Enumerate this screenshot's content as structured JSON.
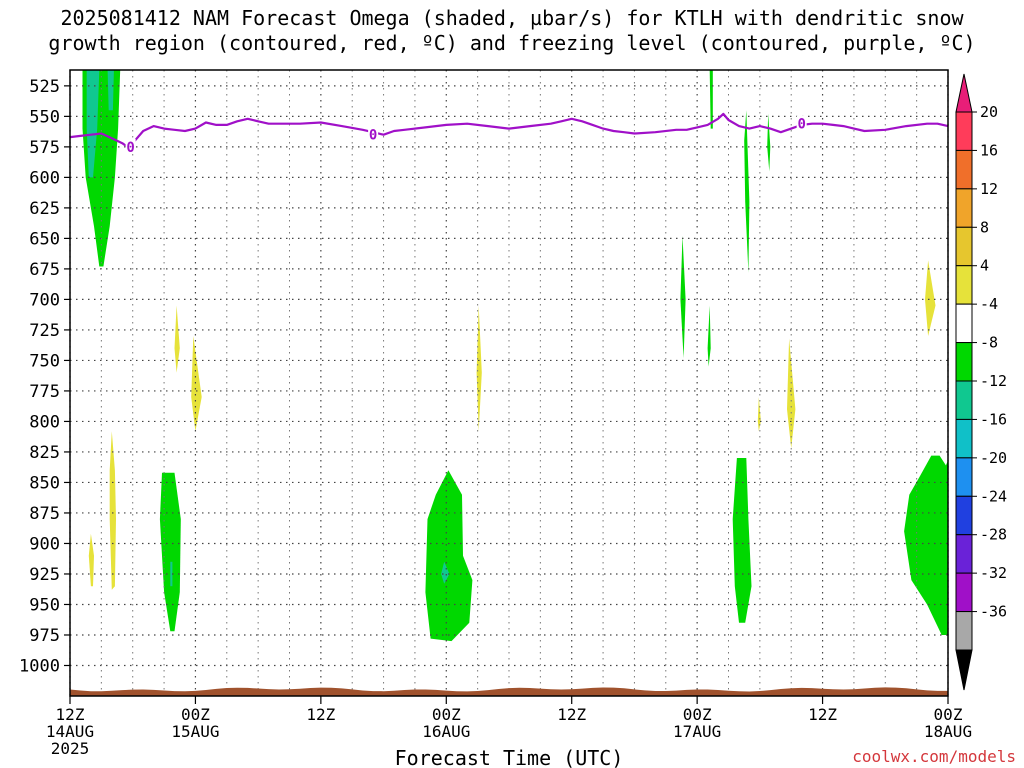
{
  "title_line1": "2025081412 NAM Forecast Omega (shaded, µbar/s) for KTLH with dendritic snow",
  "title_line2": "growth region (contoured, red, ºC) and freezing level (contoured, purple, ºC)",
  "credit": "coolwx.com/models",
  "chart_data": {
    "type": "heatmap",
    "title": "2025081412 NAM Forecast Omega (shaded, µbar/s) for KTLH with dendritic snow growth region (contoured, red, ºC) and freezing level (contoured, purple, ºC)",
    "xlabel": "Forecast Time (UTC)",
    "ylabel": "",
    "ylim": [
      1025,
      512
    ],
    "xlim": [
      0,
      84
    ],
    "yticks": [
      "525",
      "550",
      "575",
      "600",
      "625",
      "650",
      "675",
      "700",
      "725",
      "750",
      "775",
      "800",
      "825",
      "850",
      "875",
      "900",
      "925",
      "950",
      "975",
      "1000"
    ],
    "xticks": [
      {
        "hour": 0,
        "label": "12Z",
        "sub": "14AUG",
        "year": "2025"
      },
      {
        "hour": 12,
        "label": "00Z",
        "sub": "15AUG"
      },
      {
        "hour": 24,
        "label": "12Z"
      },
      {
        "hour": 36,
        "label": "00Z",
        "sub": "16AUG"
      },
      {
        "hour": 48,
        "label": "12Z"
      },
      {
        "hour": 60,
        "label": "00Z",
        "sub": "17AUG"
      },
      {
        "hour": 72,
        "label": "12Z"
      },
      {
        "hour": 84,
        "label": "00Z",
        "sub": "18AUG"
      }
    ],
    "colorbar": {
      "labels": [
        "20",
        "16",
        "12",
        "8",
        "4",
        "-4",
        "-8",
        "-12",
        "-16",
        "-20",
        "-24",
        "-28",
        "-32",
        "-36"
      ],
      "colors": [
        "#ff3c5a",
        "#f06f2a",
        "#f0a42a",
        "#e6c62e",
        "#e6e23a",
        "#ffffff",
        "#00d800",
        "#10c890",
        "#10c0c8",
        "#1e90f0",
        "#2040e0",
        "#6a22d8",
        "#a010c8",
        "#a8a8a8"
      ],
      "top_arrow": "#e81e78",
      "bottom_arrow": "#000000"
    },
    "freezing_level": {
      "label": "0",
      "color": "#a010c8",
      "points": [
        [
          0,
          567
        ],
        [
          1,
          566
        ],
        [
          2,
          565
        ],
        [
          3,
          564
        ],
        [
          4,
          568
        ],
        [
          5,
          572
        ],
        [
          5.5,
          575
        ],
        [
          6,
          572
        ],
        [
          7,
          562
        ],
        [
          8,
          558
        ],
        [
          9,
          560
        ],
        [
          10,
          561
        ],
        [
          11,
          562
        ],
        [
          12,
          560
        ],
        [
          13,
          555
        ],
        [
          14,
          557
        ],
        [
          15,
          557
        ],
        [
          16,
          554
        ],
        [
          17,
          552
        ],
        [
          18,
          554
        ],
        [
          19,
          556
        ],
        [
          20,
          556
        ],
        [
          22,
          556
        ],
        [
          24,
          555
        ],
        [
          26,
          558
        ],
        [
          28,
          561
        ],
        [
          29,
          563
        ],
        [
          30,
          565
        ],
        [
          31,
          562
        ],
        [
          32,
          561
        ],
        [
          34,
          559
        ],
        [
          36,
          557
        ],
        [
          38,
          556
        ],
        [
          40,
          558
        ],
        [
          42,
          560
        ],
        [
          44,
          558
        ],
        [
          46,
          556
        ],
        [
          47,
          554
        ],
        [
          48,
          552
        ],
        [
          49,
          554
        ],
        [
          50,
          557
        ],
        [
          51,
          560
        ],
        [
          52,
          562
        ],
        [
          53,
          563
        ],
        [
          54,
          564
        ],
        [
          56,
          563
        ],
        [
          58,
          561
        ],
        [
          59,
          561
        ],
        [
          60,
          559
        ],
        [
          61,
          557
        ],
        [
          62,
          552
        ],
        [
          62.5,
          548
        ],
        [
          63,
          553
        ],
        [
          64,
          558
        ],
        [
          65,
          560
        ],
        [
          66,
          558
        ],
        [
          67,
          560
        ],
        [
          68,
          563
        ],
        [
          69,
          560
        ],
        [
          70,
          557
        ],
        [
          71,
          556
        ],
        [
          72,
          556
        ],
        [
          73,
          557
        ],
        [
          74,
          558
        ],
        [
          75,
          560
        ],
        [
          76,
          562
        ],
        [
          78,
          561
        ],
        [
          80,
          558
        ],
        [
          82,
          556
        ],
        [
          83,
          556
        ],
        [
          84,
          558
        ]
      ]
    },
    "omega_regions": [
      {
        "value": -8,
        "points": [
          [
            1.2,
            512
          ],
          [
            4.8,
            512
          ],
          [
            4.6,
            560
          ],
          [
            4.3,
            600
          ],
          [
            3.8,
            640
          ],
          [
            3.2,
            673
          ],
          [
            2.8,
            673
          ],
          [
            2.3,
            640
          ],
          [
            1.5,
            600
          ],
          [
            1.2,
            560
          ]
        ]
      },
      {
        "value": -12,
        "points": [
          [
            1.6,
            512
          ],
          [
            2.8,
            512
          ],
          [
            2.6,
            560
          ],
          [
            2.2,
            600
          ],
          [
            1.8,
            600
          ],
          [
            1.6,
            560
          ]
        ]
      },
      {
        "value": -12,
        "points": [
          [
            3.6,
            512
          ],
          [
            4.2,
            512
          ],
          [
            4.1,
            545
          ],
          [
            3.7,
            545
          ]
        ]
      },
      {
        "value": 4,
        "points": [
          [
            4.0,
            808
          ],
          [
            4.3,
            840
          ],
          [
            4.4,
            880
          ],
          [
            4.3,
            935
          ],
          [
            4.0,
            938
          ],
          [
            3.8,
            880
          ],
          [
            3.8,
            840
          ]
        ]
      },
      {
        "value": 4,
        "points": [
          [
            2.0,
            892
          ],
          [
            2.3,
            910
          ],
          [
            2.2,
            935
          ],
          [
            2.0,
            935
          ],
          [
            1.8,
            910
          ]
        ]
      },
      {
        "value": -8,
        "points": [
          [
            8.8,
            842
          ],
          [
            10.0,
            842
          ],
          [
            10.6,
            880
          ],
          [
            10.5,
            940
          ],
          [
            10.0,
            972
          ],
          [
            9.6,
            972
          ],
          [
            9.0,
            940
          ],
          [
            8.6,
            880
          ]
        ]
      },
      {
        "value": -12,
        "points": [
          [
            9.6,
            915
          ],
          [
            9.8,
            915
          ],
          [
            9.8,
            935
          ],
          [
            9.6,
            935
          ]
        ]
      },
      {
        "value": 4,
        "points": [
          [
            10.2,
            705
          ],
          [
            10.5,
            740
          ],
          [
            10.2,
            760
          ],
          [
            10.0,
            740
          ]
        ]
      },
      {
        "value": 4,
        "points": [
          [
            11.8,
            730
          ],
          [
            12.6,
            780
          ],
          [
            12.0,
            808
          ],
          [
            11.6,
            780
          ]
        ]
      },
      {
        "value": -8,
        "points": [
          [
            36.2,
            840
          ],
          [
            37.5,
            860
          ],
          [
            37.6,
            910
          ],
          [
            38.5,
            930
          ],
          [
            38.2,
            965
          ],
          [
            36.5,
            980
          ],
          [
            34.5,
            978
          ],
          [
            34.0,
            940
          ],
          [
            34.2,
            880
          ],
          [
            35.0,
            860
          ]
        ]
      },
      {
        "value": -12,
        "points": [
          [
            35.8,
            915
          ],
          [
            36.3,
            925
          ],
          [
            35.8,
            933
          ],
          [
            35.5,
            925
          ]
        ]
      },
      {
        "value": 4,
        "points": [
          [
            39.1,
            705
          ],
          [
            39.4,
            760
          ],
          [
            39.1,
            808
          ],
          [
            38.9,
            760
          ]
        ]
      },
      {
        "value": -8,
        "points": [
          [
            61.2,
            512
          ],
          [
            61.5,
            512
          ],
          [
            61.5,
            560
          ],
          [
            61.3,
            560
          ]
        ]
      },
      {
        "value": -8,
        "points": [
          [
            58.6,
            648
          ],
          [
            58.9,
            700
          ],
          [
            58.7,
            748
          ],
          [
            58.4,
            700
          ]
        ]
      },
      {
        "value": -8,
        "points": [
          [
            61.2,
            705
          ],
          [
            61.3,
            740
          ],
          [
            61.1,
            755
          ],
          [
            61.0,
            740
          ]
        ]
      },
      {
        "value": -8,
        "points": [
          [
            63.8,
            830
          ],
          [
            64.7,
            830
          ],
          [
            64.9,
            880
          ],
          [
            65.2,
            935
          ],
          [
            64.6,
            965
          ],
          [
            64.0,
            965
          ],
          [
            63.6,
            935
          ],
          [
            63.4,
            880
          ]
        ]
      },
      {
        "value": -8,
        "points": [
          [
            64.7,
            545
          ],
          [
            65.0,
            620
          ],
          [
            64.9,
            678
          ],
          [
            64.6,
            620
          ],
          [
            64.5,
            570
          ]
        ]
      },
      {
        "value": -8,
        "points": [
          [
            66.8,
            548
          ],
          [
            67.0,
            575
          ],
          [
            66.9,
            595
          ],
          [
            66.7,
            575
          ]
        ]
      },
      {
        "value": 4,
        "points": [
          [
            65.9,
            780
          ],
          [
            66.1,
            800
          ],
          [
            65.9,
            808
          ],
          [
            65.8,
            800
          ]
        ]
      },
      {
        "value": 4,
        "points": [
          [
            68.8,
            732
          ],
          [
            69.4,
            790
          ],
          [
            69.0,
            822
          ],
          [
            68.6,
            790
          ]
        ]
      },
      {
        "value": 4,
        "points": [
          [
            82.1,
            668
          ],
          [
            82.8,
            705
          ],
          [
            82.1,
            730
          ],
          [
            81.8,
            700
          ]
        ]
      },
      {
        "value": -8,
        "points": [
          [
            82.4,
            828
          ],
          [
            83.2,
            828
          ],
          [
            83.8,
            836
          ],
          [
            84,
            832
          ],
          [
            84,
            975
          ],
          [
            83.4,
            975
          ],
          [
            82.0,
            950
          ],
          [
            80.5,
            930
          ],
          [
            79.8,
            890
          ],
          [
            80.3,
            860
          ],
          [
            81.3,
            845
          ]
        ]
      }
    ],
    "surface": {
      "color": "#a0522d",
      "pressure": 1018
    }
  }
}
